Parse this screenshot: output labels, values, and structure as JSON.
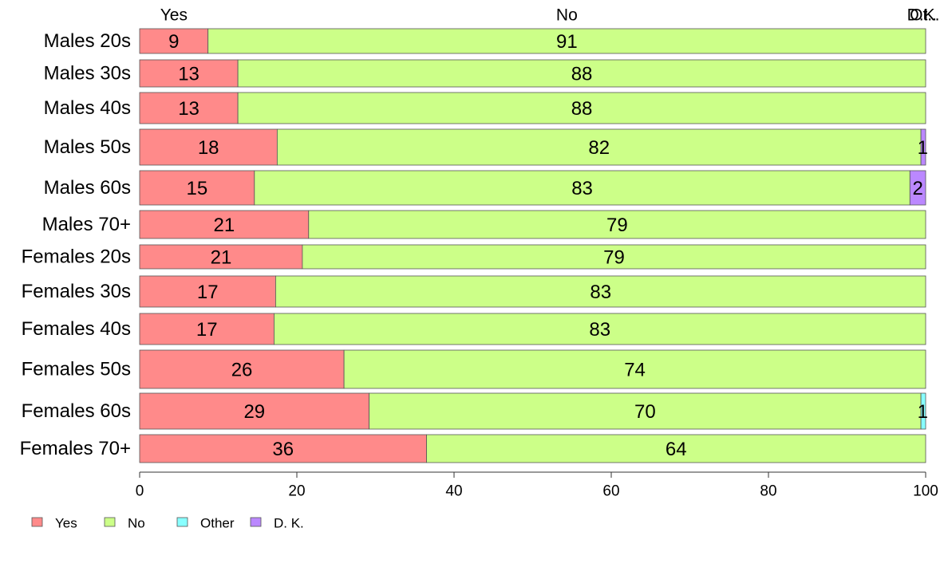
{
  "chart_data": {
    "type": "bar",
    "orientation": "horizontal",
    "stacked": true,
    "categories": [
      "Males 20s",
      "Males 30s",
      "Males 40s",
      "Males 50s",
      "Males 60s",
      "Males 70+",
      "Females 20s",
      "Females 30s",
      "Females 40s",
      "Females 50s",
      "Females 60s",
      "Females 70+"
    ],
    "series": [
      {
        "name": "Yes",
        "color": "#ff8a8a",
        "values": [
          8.7,
          12.5,
          12.5,
          17.5,
          14.6,
          21.5,
          20.7,
          17.3,
          17.1,
          26.0,
          29.2,
          36.5
        ]
      },
      {
        "name": "No",
        "color": "#ccff88",
        "values": [
          91.3,
          87.5,
          87.5,
          81.9,
          83.4,
          78.5,
          79.3,
          82.7,
          82.9,
          74.0,
          70.2,
          63.5
        ]
      },
      {
        "name": "Other",
        "color": "#88ffff",
        "values": [
          0,
          0,
          0,
          0,
          0,
          0,
          0,
          0,
          0,
          0,
          0.6,
          0
        ]
      },
      {
        "name": "D. K.",
        "color": "#bb88ff",
        "values": [
          0,
          0,
          0,
          0.6,
          2.0,
          0,
          0,
          0,
          0,
          0,
          0,
          0
        ]
      }
    ],
    "data_labels": [
      [
        "9",
        "91",
        "",
        ""
      ],
      [
        "13",
        "88",
        "",
        ""
      ],
      [
        "13",
        "88",
        "",
        ""
      ],
      [
        "18",
        "82",
        "",
        "1"
      ],
      [
        "15",
        "83",
        "",
        "2"
      ],
      [
        "21",
        "79",
        "",
        ""
      ],
      [
        "21",
        "79",
        "",
        ""
      ],
      [
        "17",
        "83",
        "",
        ""
      ],
      [
        "17",
        "83",
        "",
        ""
      ],
      [
        "26",
        "74",
        "",
        ""
      ],
      [
        "29",
        "70",
        "1",
        ""
      ],
      [
        "36",
        "64",
        "",
        ""
      ]
    ],
    "top_labels": [
      {
        "text": "Yes",
        "at": 4.35
      },
      {
        "text": "No",
        "at": 54.35
      },
      {
        "text": "D.K.",
        "at": 99.7
      },
      {
        "text": "Ot..",
        "at": 99.7
      }
    ],
    "x_ticks": [
      0,
      20,
      40,
      60,
      80,
      100
    ],
    "x_tick_labels": [
      "0",
      "20",
      "40",
      "60",
      "80",
      "100"
    ],
    "xlim": [
      0,
      100
    ],
    "legend": {
      "placement": "bottom-left",
      "entries": [
        {
          "label": "Yes",
          "color": "#ff8a8a"
        },
        {
          "label": "No",
          "color": "#ccff88"
        },
        {
          "label": "Other",
          "color": "#88ffff"
        },
        {
          "label": "D. K.",
          "color": "#bb88ff"
        }
      ]
    },
    "title": "",
    "xlabel": "",
    "ylabel": ""
  }
}
